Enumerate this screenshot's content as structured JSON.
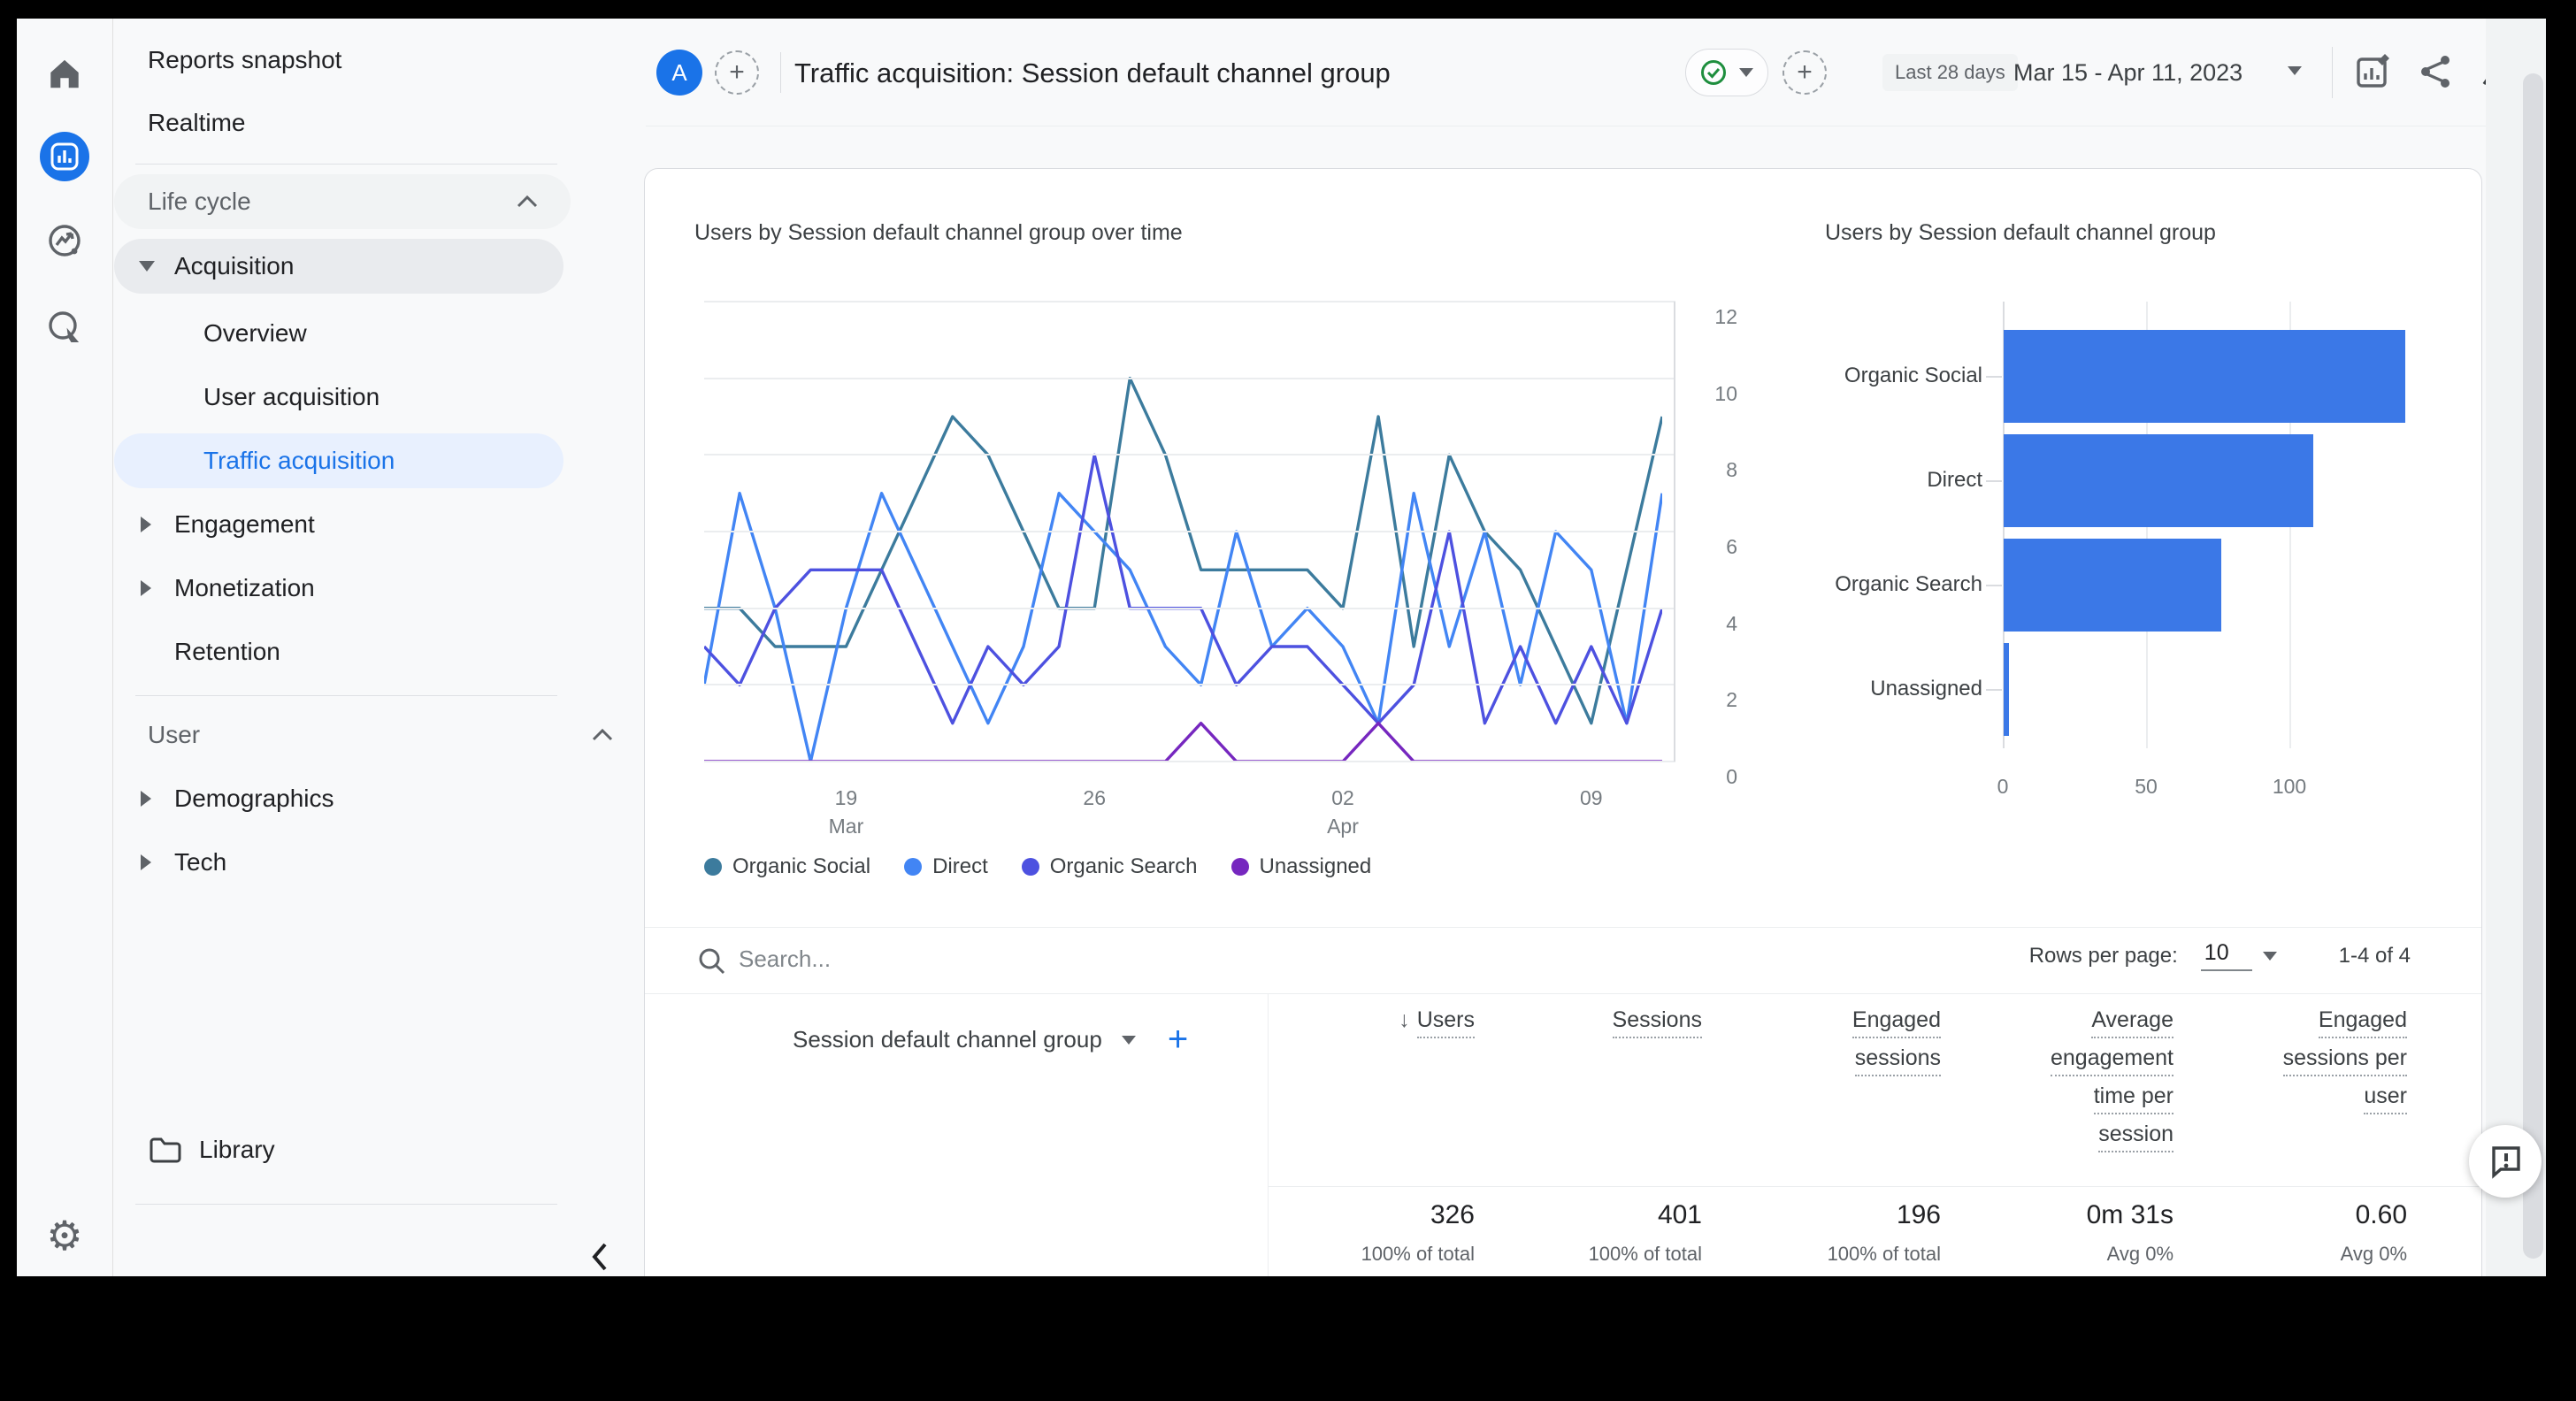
{
  "icons": {
    "plus": "+",
    "sort_desc": "↓",
    "gear": "⚙"
  },
  "rail": {
    "items": [
      "home",
      "reports",
      "explore",
      "advertising",
      "admin"
    ]
  },
  "sidebar": {
    "top_items": {
      "reports_snapshot": "Reports snapshot",
      "realtime": "Realtime"
    },
    "sections": [
      {
        "label": "Life cycle",
        "children": [
          {
            "label": "Acquisition",
            "state": "expanded",
            "children": [
              "Overview",
              "User acquisition",
              "Traffic acquisition"
            ],
            "selected_child": "Traffic acquisition"
          },
          {
            "label": "Engagement",
            "state": "collapsed"
          },
          {
            "label": "Monetization",
            "state": "collapsed"
          },
          {
            "label": "Retention",
            "state": "none"
          }
        ]
      },
      {
        "label": "User",
        "children": [
          {
            "label": "Demographics",
            "state": "collapsed"
          },
          {
            "label": "Tech",
            "state": "collapsed"
          }
        ]
      }
    ],
    "library_label": "Library"
  },
  "header": {
    "avatar_letter": "A",
    "title": "Traffic acquisition: Session default channel group",
    "date_preset": "Last 28 days",
    "date_range": "Mar 15 - Apr 11, 2023"
  },
  "chart_data": [
    {
      "type": "line",
      "title": "Users by Session default channel group over time",
      "n_points": 28,
      "x_ticks": [
        {
          "index": 4,
          "label": "19",
          "sublabel": "Mar"
        },
        {
          "index": 11,
          "label": "26",
          "sublabel": ""
        },
        {
          "index": 18,
          "label": "02",
          "sublabel": "Apr"
        },
        {
          "index": 25,
          "label": "09",
          "sublabel": ""
        }
      ],
      "ylim": [
        0,
        12
      ],
      "yticks": [
        12,
        10,
        8,
        6,
        4,
        2,
        0
      ],
      "grid": true,
      "legend_position": "bottom",
      "series": [
        {
          "name": "Organic Social",
          "color": "#3c7b9d",
          "values": [
            4,
            4,
            3,
            3,
            3,
            5,
            7,
            9,
            8,
            6,
            4,
            4,
            10,
            8,
            5,
            5,
            5,
            5,
            4,
            9,
            3,
            8,
            6,
            5,
            3,
            1,
            5,
            9
          ]
        },
        {
          "name": "Direct",
          "color": "#4285f4",
          "values": [
            2,
            7,
            4,
            0,
            4,
            7,
            5,
            3,
            1,
            3,
            7,
            6,
            5,
            3,
            2,
            6,
            3,
            4,
            3,
            1,
            7,
            3,
            6,
            2,
            6,
            5,
            1,
            7
          ]
        },
        {
          "name": "Organic Search",
          "color": "#4d51e0",
          "values": [
            3,
            2,
            4,
            5,
            5,
            5,
            3,
            1,
            3,
            2,
            3,
            8,
            4,
            4,
            4,
            2,
            3,
            3,
            2,
            1,
            2,
            6,
            1,
            3,
            1,
            3,
            1,
            4
          ]
        },
        {
          "name": "Unassigned",
          "color": "#7627bf",
          "values": [
            0,
            0,
            0,
            0,
            0,
            0,
            0,
            0,
            0,
            0,
            0,
            0,
            0,
            0,
            1,
            0,
            0,
            0,
            0,
            1,
            0,
            0,
            0,
            0,
            0,
            0,
            0,
            0
          ]
        }
      ]
    },
    {
      "type": "bar",
      "orientation": "horizontal",
      "title": "Users by Session default channel group",
      "categories": [
        "Organic Social",
        "Direct",
        "Organic Search",
        "Unassigned"
      ],
      "values": [
        140,
        108,
        76,
        2
      ],
      "xticks": [
        0,
        50,
        100
      ],
      "xlim": [
        0,
        168
      ],
      "bar_color": "#3b78e7",
      "grid": true
    }
  ],
  "search": {
    "placeholder": "Search..."
  },
  "pagination": {
    "rows_per_page_label": "Rows per page:",
    "rows_per_page_value": "10",
    "range_label": "1-4 of 4"
  },
  "table": {
    "dimension_header": "Session default channel group",
    "columns": [
      {
        "lines": [
          "Users"
        ],
        "sorted": true,
        "total": "326",
        "total_sub": "100% of total"
      },
      {
        "lines": [
          "Sessions"
        ],
        "sorted": false,
        "total": "401",
        "total_sub": "100% of total"
      },
      {
        "lines": [
          "Engaged",
          "sessions"
        ],
        "sorted": false,
        "total": "196",
        "total_sub": "100% of total"
      },
      {
        "lines": [
          "Average",
          "engagement",
          "time per",
          "session"
        ],
        "sorted": false,
        "total": "0m 31s",
        "total_sub": "Avg 0%"
      },
      {
        "lines": [
          "Engaged",
          "sessions per",
          "user"
        ],
        "sorted": false,
        "total": "0.60",
        "total_sub": "Avg 0%"
      }
    ]
  }
}
